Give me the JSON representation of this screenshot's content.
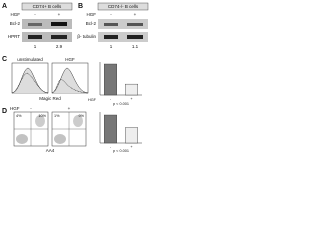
{
  "panel_a": {
    "label": "A",
    "cell_type": "CD74+ B cells",
    "treatment": "HGF",
    "lanes": [
      "-",
      "+"
    ],
    "rows": [
      "Bcl-2",
      "HPRT"
    ],
    "ratios": [
      "1",
      "2.9"
    ]
  },
  "panel_b": {
    "label": "B",
    "cell_type": "CD74-/- B cells",
    "treatment": "HGF",
    "lanes": [
      "-",
      "+"
    ],
    "rows": [
      "Bcl-2",
      "β- tubulin"
    ],
    "ratios": [
      "1",
      "1.1"
    ]
  },
  "panel_c": {
    "label": "C",
    "histograms": [
      "unstimulated",
      "HGF"
    ],
    "x_label": "Magic Red",
    "bars": {
      "treatment": "HGF",
      "categories": [
        "-",
        "+"
      ],
      "values": [
        100,
        35
      ],
      "stat": "p < 0.001"
    }
  },
  "panel_d": {
    "label": "D",
    "treatment": "HGF",
    "plots": [
      "-",
      "+"
    ],
    "quadrants": [
      [
        "4%",
        "10%"
      ],
      [
        "1%",
        "9%"
      ]
    ],
    "x_label": "AA4",
    "bars": {
      "categories": [
        "-",
        "+"
      ],
      "values": [
        40,
        22
      ],
      "stat": "p < 0.001"
    }
  }
}
